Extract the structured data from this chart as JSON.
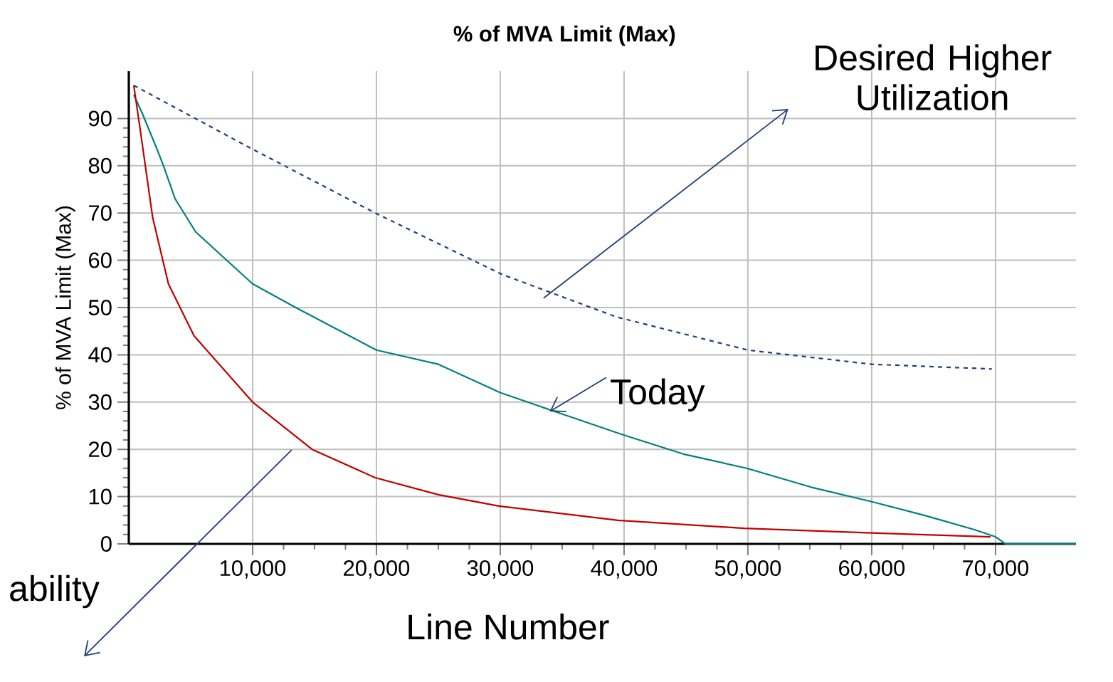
{
  "chart_data": {
    "type": "line",
    "title": "% of MVA Limit (Max)",
    "xlabel": "Line Number",
    "ylabel": "% of MVA Limit (Max)",
    "xlim": [
      0,
      76500
    ],
    "ylim": [
      0,
      100
    ],
    "xticks": [
      {
        "value": 10000,
        "label": "10,000"
      },
      {
        "value": 20000,
        "label": "20,000"
      },
      {
        "value": 30000,
        "label": "30,000"
      },
      {
        "value": 40000,
        "label": "40,000"
      },
      {
        "value": 50000,
        "label": "50,000"
      },
      {
        "value": 60000,
        "label": "60,000"
      },
      {
        "value": 70000,
        "label": "70,000"
      }
    ],
    "yticks": [
      0,
      10,
      20,
      30,
      40,
      50,
      60,
      70,
      80,
      90
    ],
    "grid": true,
    "series": [
      {
        "color": "#008080",
        "x": [
          400,
          1100,
          2200,
          2800,
          3740,
          5400,
          7070,
          10000,
          13480,
          20000,
          25000,
          30000,
          34400,
          40000,
          44800,
          49900,
          55100,
          59900,
          64300,
          68300,
          70000,
          70800,
          76500
        ],
        "values": [
          95,
          91,
          84,
          80,
          73,
          66,
          62,
          55,
          50,
          41,
          38,
          32,
          28,
          23,
          19,
          16,
          12,
          9,
          6,
          3,
          1.5,
          0,
          0
        ]
      },
      {
        "color": "#c00000",
        "x": [
          400,
          900,
          1930,
          3200,
          5270,
          10000,
          14800,
          19900,
          25000,
          29900,
          39500,
          49700,
          60000,
          69600
        ],
        "values": [
          97,
          88,
          69,
          55,
          44,
          30,
          20,
          14,
          10.4,
          8,
          5,
          3.3,
          2.3,
          1.5
        ]
      },
      {
        "color": "#1f3f77",
        "line_style": "dashed",
        "x": [
          400,
          9630,
          19900,
          30150,
          39400,
          50000,
          60000,
          69700
        ],
        "values": [
          97,
          84,
          70,
          57,
          48,
          41,
          38,
          37
        ]
      }
    ],
    "annotations": [
      "Desired Higher Utilization",
      {
        "text": "Today",
        "x": 34000,
        "y": 28
      },
      "ability"
    ]
  }
}
